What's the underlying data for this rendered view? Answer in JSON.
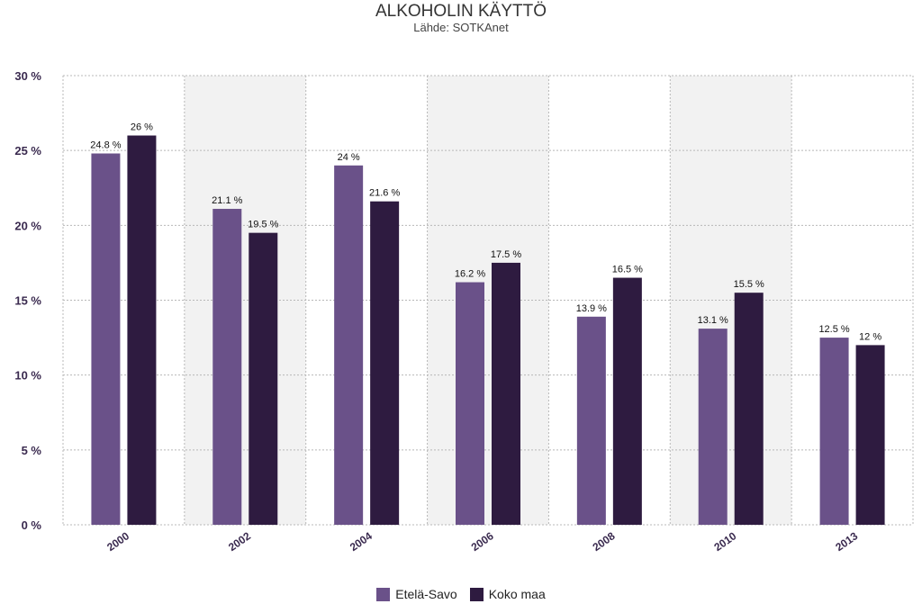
{
  "chart_data": {
    "type": "bar",
    "title": "ALKOHOLIN KÄYTTÖ",
    "subtitle": "Lähde: SOTKAnet",
    "categories": [
      "2000",
      "2002",
      "2004",
      "2006",
      "2008",
      "2010",
      "2013"
    ],
    "series": [
      {
        "name": "Etelä-Savo",
        "color": "#6a5189",
        "values": [
          24.8,
          21.1,
          24,
          16.2,
          13.9,
          13.1,
          12.5
        ],
        "labels": [
          "24.8 %",
          "21.1 %",
          "24 %",
          "16.2 %",
          "13.9 %",
          "13.1 %",
          "12.5 %"
        ]
      },
      {
        "name": "Koko maa",
        "color": "#2e1b40",
        "values": [
          26,
          19.5,
          21.6,
          17.5,
          16.5,
          15.5,
          12
        ],
        "labels": [
          "26 %",
          "19.5 %",
          "21.6 %",
          "17.5 %",
          "16.5 %",
          "15.5 %",
          "12 %"
        ]
      }
    ],
    "ylim": [
      0,
      30
    ],
    "yticks": [
      0,
      5,
      10,
      15,
      20,
      25,
      30
    ],
    "ytick_labels": [
      "0 %",
      "5 %",
      "10 %",
      "15 %",
      "20 %",
      "25 %",
      "30 %"
    ],
    "xlabel": "",
    "ylabel": "",
    "grid": true,
    "legend_position": "bottom-center",
    "colors": {
      "axis_label": "#3a2a4f",
      "grid": "#b8b8b8",
      "band": "#f2f2f2"
    }
  }
}
